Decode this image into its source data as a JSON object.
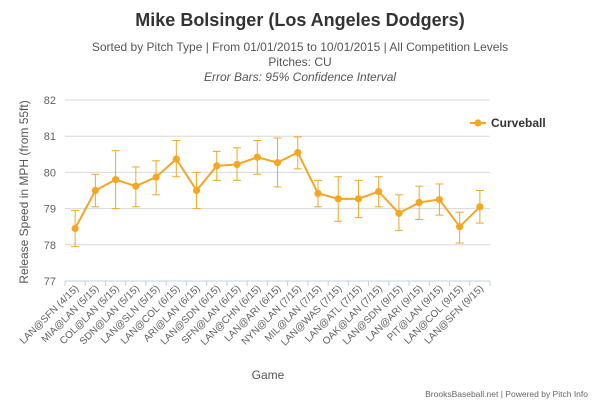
{
  "chart_data": {
    "type": "line",
    "title": "Mike Bolsinger (Los Angeles Dodgers)",
    "subtitle_line1": "Sorted by Pitch Type | From 01/01/2015 to 10/01/2015 | All Competition Levels",
    "subtitle_line2": "Pitches: CU",
    "subtitle_line3": "Error Bars: 95% Confidence Interval",
    "xlabel": "Game",
    "ylabel": "Release Speed in MPH (from 55ft)",
    "ylim": [
      77,
      82
    ],
    "yticks": [
      77,
      78,
      79,
      80,
      81,
      82
    ],
    "grid": true,
    "legend_position": "top-right",
    "categories": [
      "LAN@SFN (4/15)",
      "MIA@LAN (5/15)",
      "COL@LAN (5/15)",
      "SDN@LAN (5/15)",
      "LAN@SLN (5/15)",
      "LAN@COL (6/15)",
      "ARI@LAN (6/15)",
      "LAN@SDN (6/15)",
      "SFN@LAN (6/15)",
      "LAN@CHN (6/15)",
      "LAN@ARI (6/15)",
      "NYN@LAN (7/15)",
      "MIL@LAN (7/15)",
      "LAN@WAS (7/15)",
      "LAN@ATL (7/15)",
      "OAK@LAN (7/15)",
      "LAN@SDN (9/15)",
      "LAN@ARI (9/15)",
      "PIT@LAN (9/15)",
      "LAN@COL (9/15)",
      "LAN@SFN (9/15)"
    ],
    "series": [
      {
        "name": "Curveball",
        "color": "#f5a623",
        "values": [
          78.45,
          79.5,
          79.8,
          79.62,
          79.87,
          80.37,
          79.5,
          80.18,
          80.22,
          80.42,
          80.27,
          80.55,
          79.42,
          79.27,
          79.27,
          79.47,
          78.87,
          79.17,
          79.25,
          78.5,
          79.05
        ],
        "err_low": [
          77.95,
          79.05,
          79.0,
          79.05,
          79.38,
          79.88,
          79.0,
          79.78,
          79.78,
          79.95,
          79.6,
          80.1,
          79.05,
          78.65,
          78.75,
          79.05,
          78.4,
          78.7,
          78.82,
          78.05,
          78.6
        ],
        "err_high": [
          78.95,
          79.95,
          80.6,
          80.15,
          80.32,
          80.88,
          80.0,
          80.58,
          80.68,
          80.88,
          80.95,
          80.98,
          79.78,
          79.88,
          79.78,
          79.88,
          79.38,
          79.62,
          79.68,
          78.9,
          79.5
        ]
      }
    ]
  },
  "footer": {
    "credit_brand": "BrooksBaseball.net",
    "credit_rest": " | Powered by Pitch Info"
  }
}
